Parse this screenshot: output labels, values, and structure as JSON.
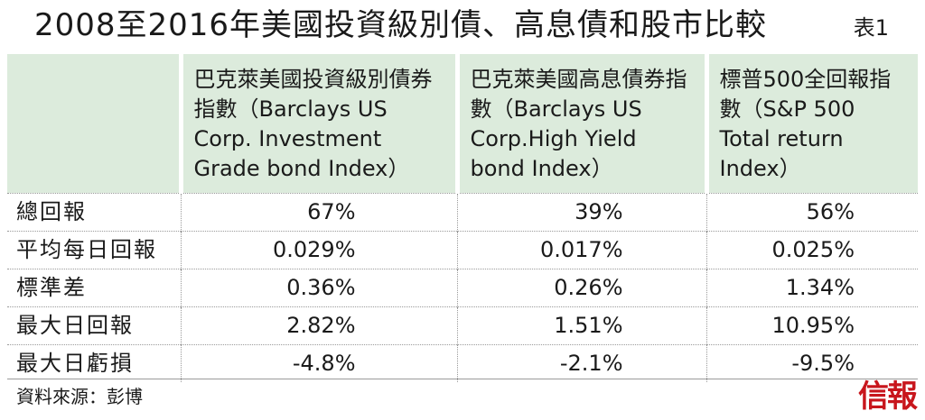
{
  "header": {
    "title": "2008至2016年美國投資級別債、高息債和股市比較",
    "table_no": "表1"
  },
  "table": {
    "columns": [
      "巴克萊美國投資級別債券指數（Barclays US Corp. Investment Grade bond Index）",
      "巴克萊美國高息債券指數（Barclays US Corp.High Yield bond Index）",
      "標普500全回報指數（S&P 500 Total return Index）"
    ],
    "rows": [
      {
        "label": "總回報",
        "values": [
          "67%",
          "39%",
          "56%"
        ]
      },
      {
        "label": "平均每日回報",
        "values": [
          "0.029%",
          "0.017%",
          "0.025%"
        ]
      },
      {
        "label": "標準差",
        "values": [
          "0.36%",
          "0.26%",
          "1.34%"
        ]
      },
      {
        "label": "最大日回報",
        "values": [
          "2.82%",
          "1.51%",
          "10.95%"
        ]
      },
      {
        "label": "最大日虧損",
        "values": [
          "-4.8%",
          "-2.1%",
          "-9.5%"
        ]
      }
    ]
  },
  "footer": {
    "source": "資料來源：彭博",
    "logo": "信報"
  },
  "colors": {
    "header_bg": "#dcebdc",
    "logo_red": "#c8161d"
  }
}
